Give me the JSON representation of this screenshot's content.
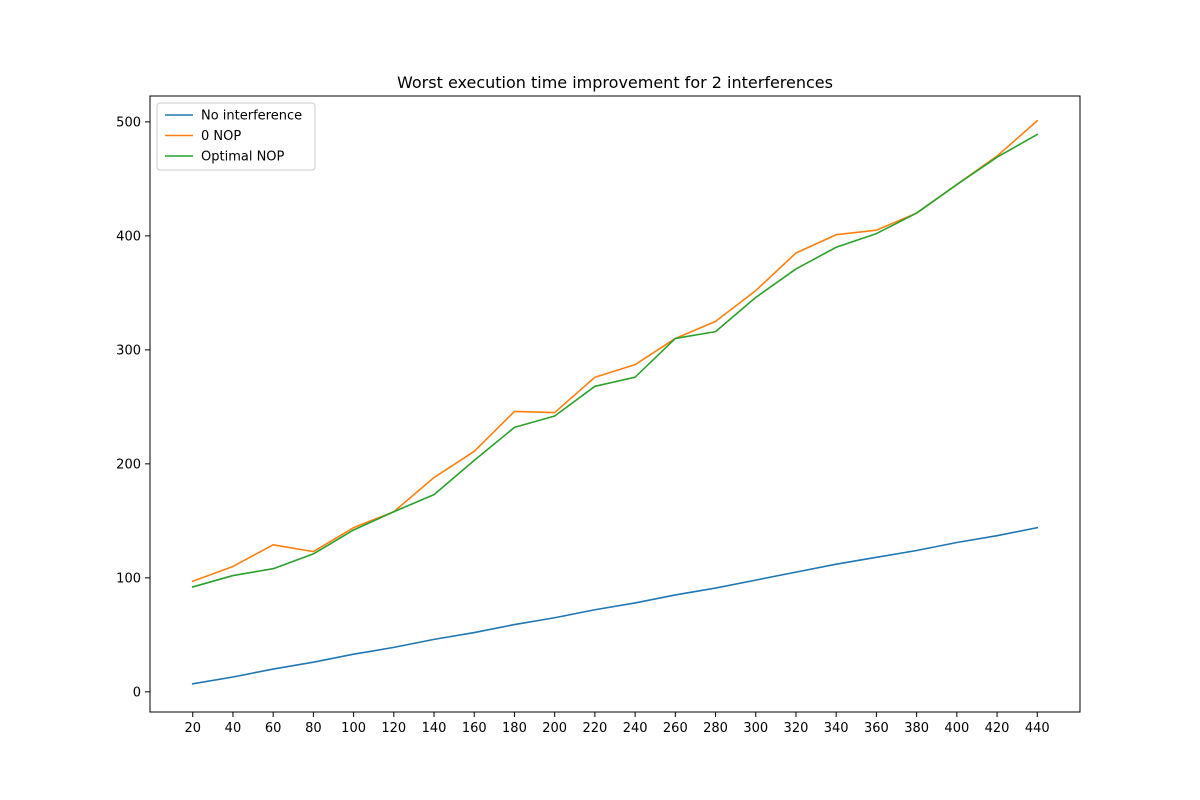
{
  "chart_data": {
    "type": "line",
    "title": "Worst execution time improvement for 2 interferences",
    "xlabel": "",
    "ylabel": "",
    "x": [
      20,
      40,
      60,
      80,
      100,
      120,
      140,
      160,
      180,
      200,
      220,
      240,
      260,
      280,
      300,
      320,
      340,
      360,
      380,
      400,
      420,
      440
    ],
    "xticks": [
      20,
      40,
      60,
      80,
      100,
      120,
      140,
      160,
      180,
      200,
      220,
      240,
      260,
      280,
      300,
      320,
      340,
      360,
      380,
      400,
      420,
      440
    ],
    "yticks": [
      0,
      100,
      200,
      300,
      400,
      500
    ],
    "xlim": [
      -1.25,
      461.25
    ],
    "ylim": [
      -17.7,
      522.7
    ],
    "grid": false,
    "legend_position": "upper-left",
    "series": [
      {
        "name": "No interference",
        "color": "#1f77b4",
        "values": [
          7,
          13,
          20,
          26,
          33,
          39,
          46,
          52,
          59,
          65,
          72,
          78,
          85,
          91,
          98,
          105,
          112,
          118,
          124,
          131,
          137,
          144
        ]
      },
      {
        "name": "0 NOP",
        "color": "#ff7f0e",
        "values": [
          97,
          110,
          129,
          123,
          144,
          158,
          188,
          211,
          246,
          245,
          276,
          287,
          310,
          325,
          352,
          385,
          401,
          405,
          420,
          445,
          470,
          501
        ]
      },
      {
        "name": "Optimal NOP",
        "color": "#2ca02c",
        "values": [
          92,
          102,
          108,
          121,
          142,
          158,
          173,
          203,
          232,
          242,
          268,
          276,
          310,
          316,
          346,
          371,
          390,
          402,
          420,
          445,
          469,
          489
        ]
      }
    ]
  }
}
